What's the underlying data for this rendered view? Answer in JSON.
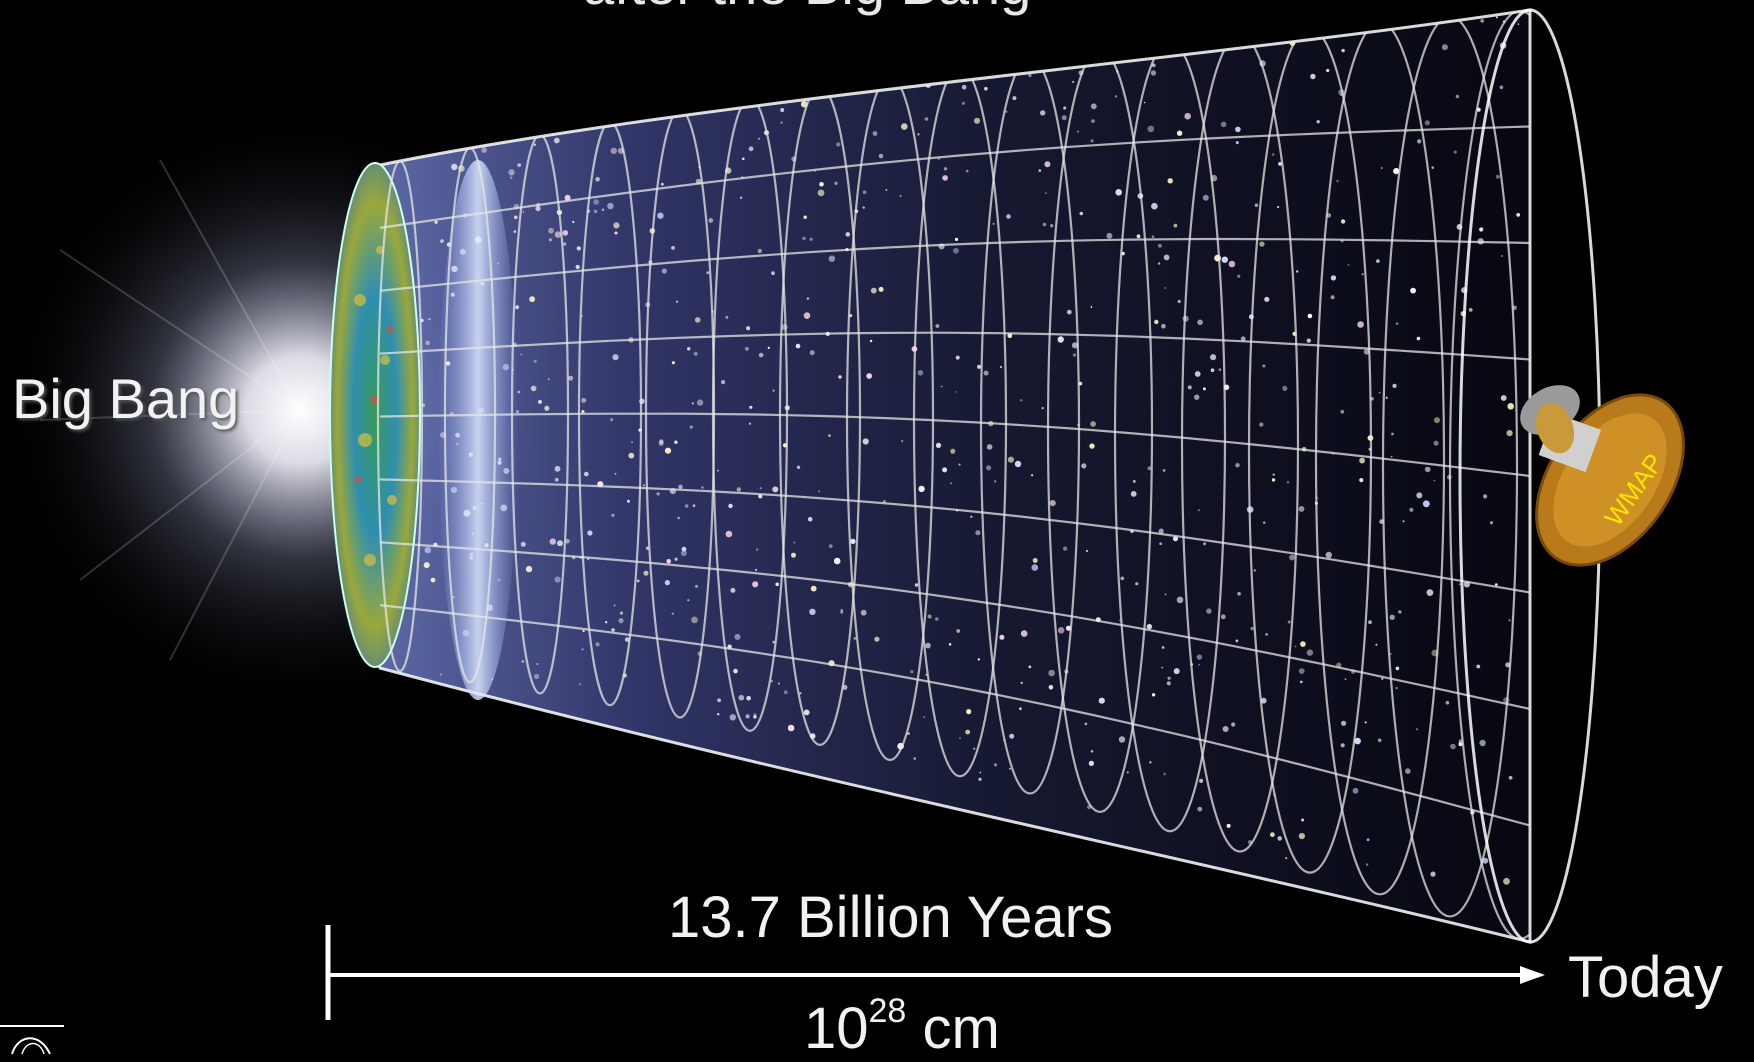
{
  "title_fragment": "after the Big Bang",
  "labels": {
    "big_bang": "Big Bang",
    "duration": "13.7 Billion Years",
    "today": "Today",
    "size_base": "10",
    "size_exponent": "28",
    "size_unit": " cm",
    "satellite": "WMAP"
  },
  "colors": {
    "background": "#000000",
    "grid": "#e6e6e6",
    "satellite_dish": "#c8861e",
    "satellite_text": "#f5e600"
  }
}
